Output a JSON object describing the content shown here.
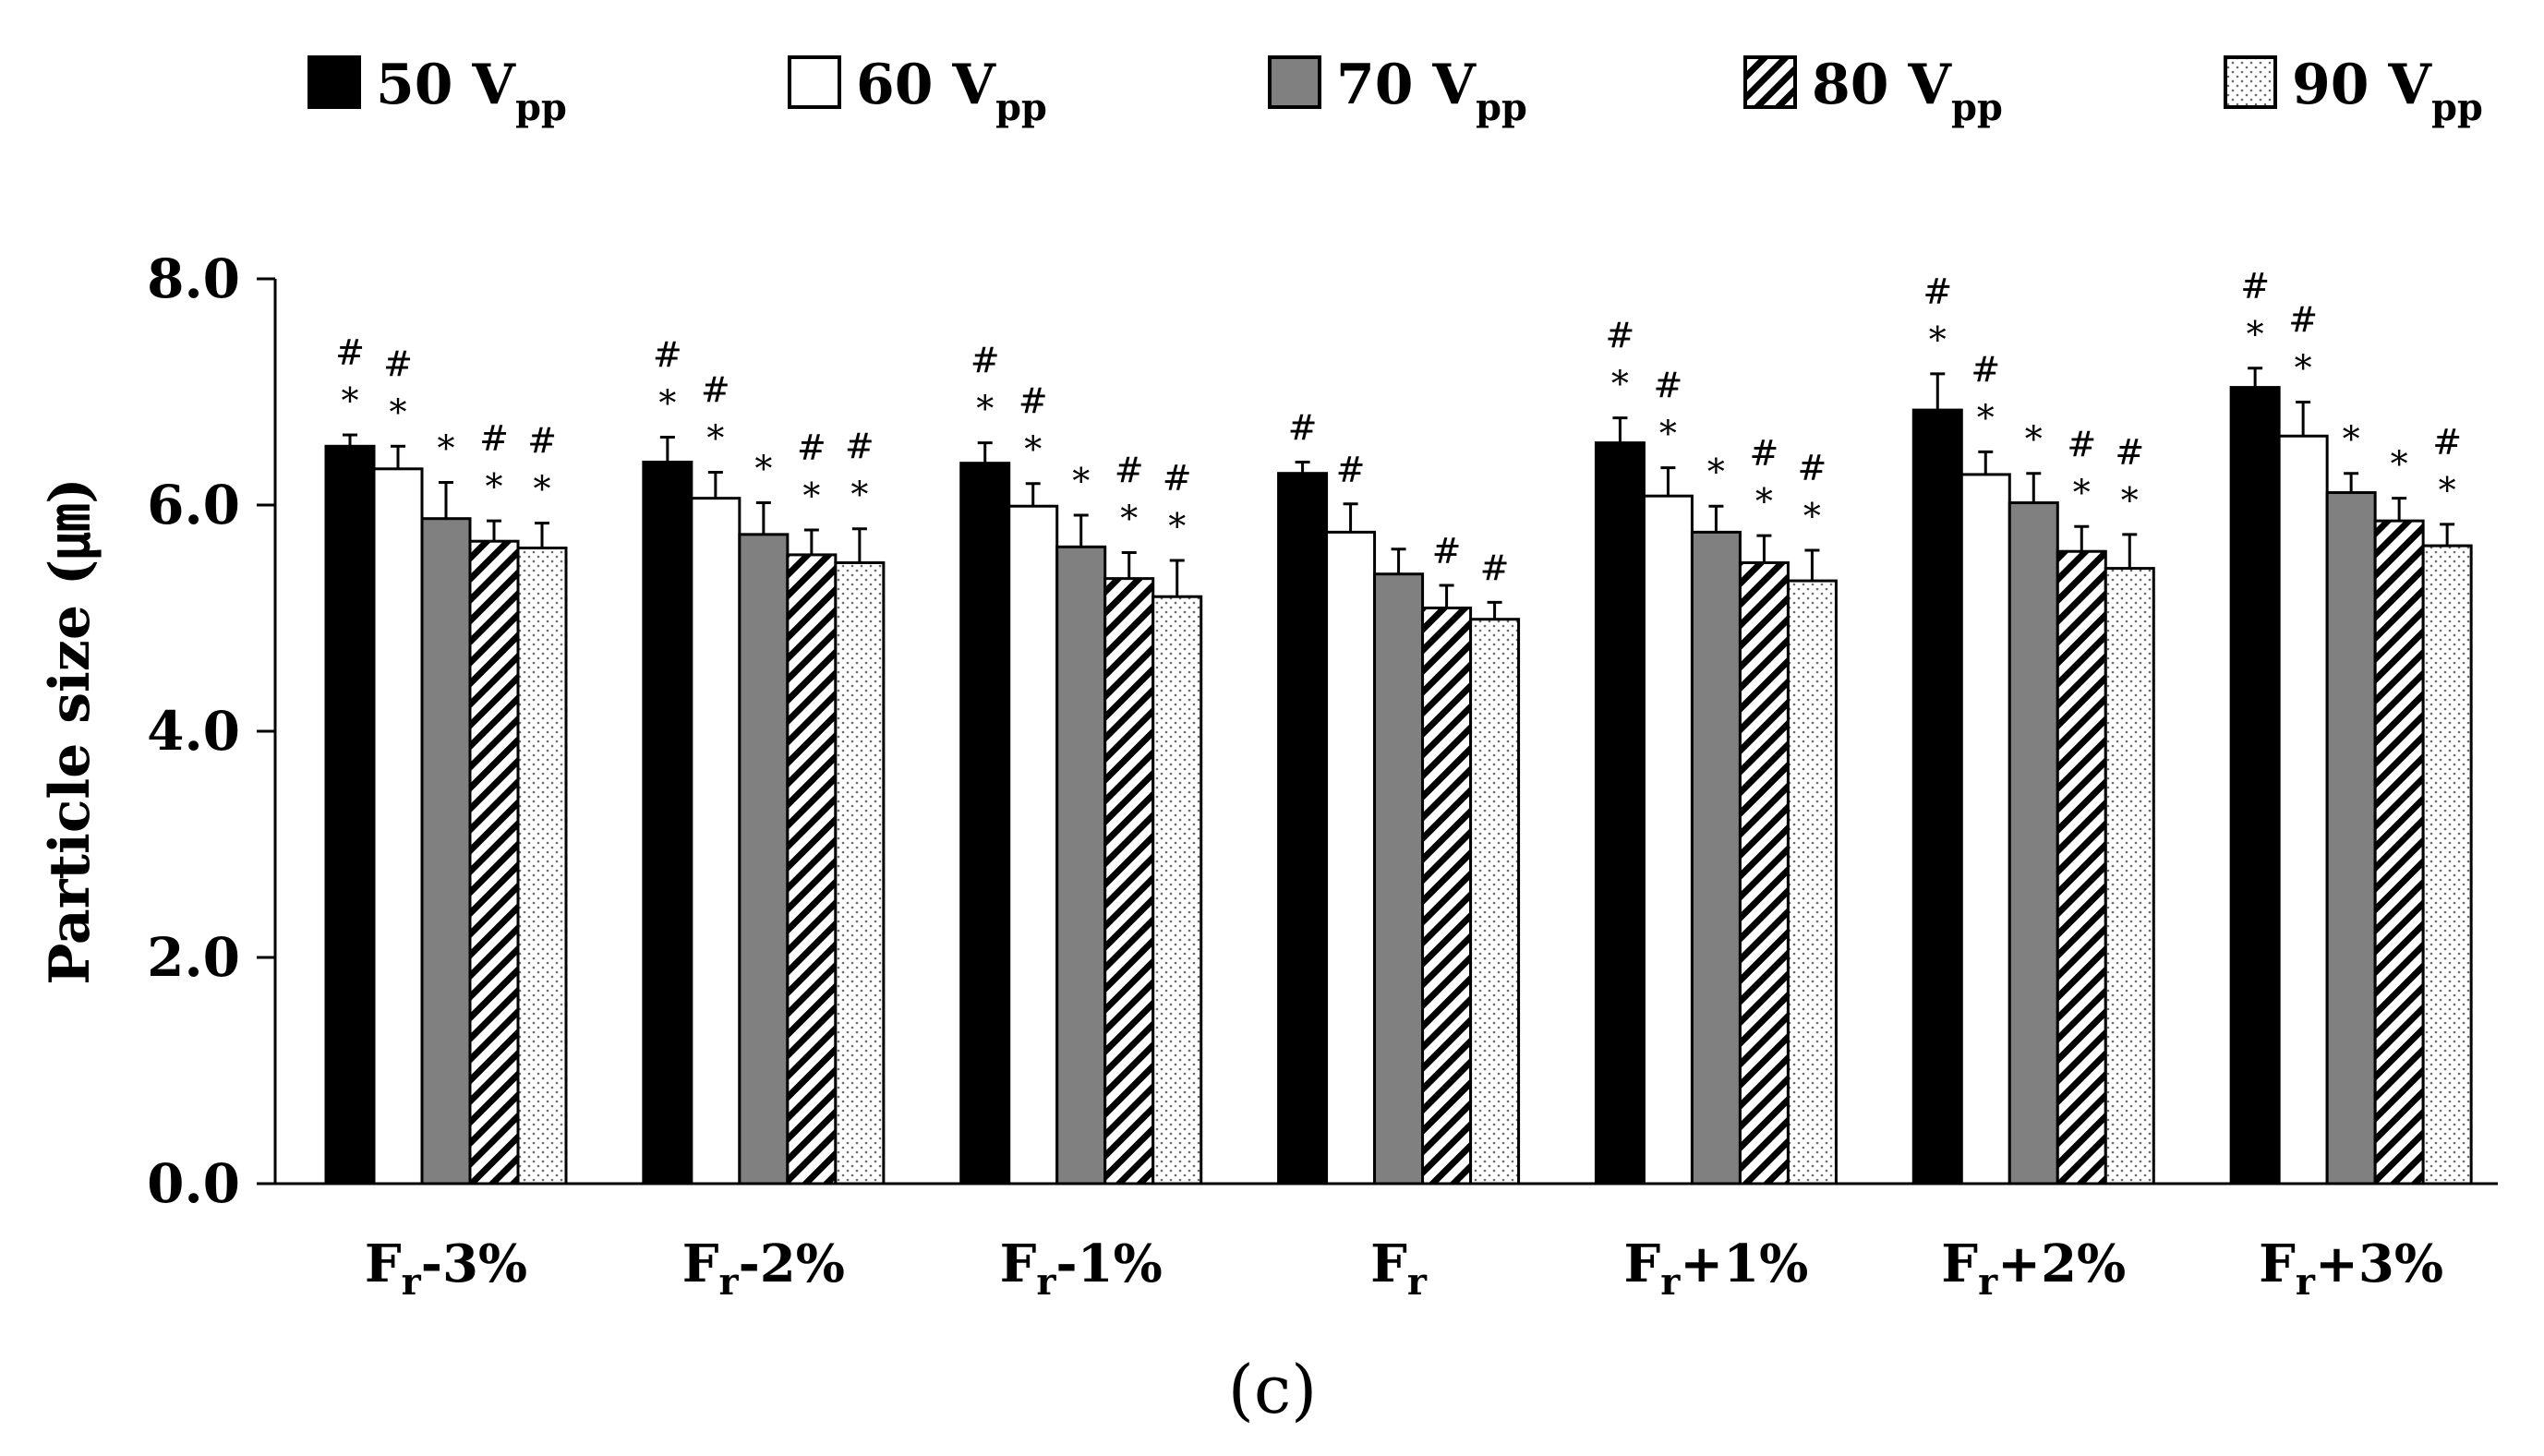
{
  "chart_data": {
    "type": "bar",
    "ylabel": "Particle size (㎛)",
    "ylim": [
      0,
      8.0
    ],
    "yticks": [
      "0.0",
      "2.0",
      "4.0",
      "6.0",
      "8.0"
    ],
    "caption": "(c)",
    "categories": [
      {
        "base": "F",
        "sub": "r",
        "suffix": "-3%"
      },
      {
        "base": "F",
        "sub": "r",
        "suffix": "-2%"
      },
      {
        "base": "F",
        "sub": "r",
        "suffix": "-1%"
      },
      {
        "base": "F",
        "sub": "r",
        "suffix": ""
      },
      {
        "base": "F",
        "sub": "r",
        "suffix": "+1%"
      },
      {
        "base": "F",
        "sub": "r",
        "suffix": "+2%"
      },
      {
        "base": "F",
        "sub": "r",
        "suffix": "+3%"
      }
    ],
    "series": [
      {
        "name": "50 V",
        "sub": "pp",
        "pattern": "black",
        "values": [
          6.52,
          6.38,
          6.37,
          6.28,
          6.55,
          6.84,
          7.04
        ],
        "errors": [
          0.1,
          0.22,
          0.18,
          0.1,
          0.22,
          0.32,
          0.17
        ],
        "marks": [
          [
            "#",
            "*"
          ],
          [
            "#",
            "*"
          ],
          [
            "#",
            "*"
          ],
          [
            "#"
          ],
          [
            "#",
            "*"
          ],
          [
            "#",
            "*"
          ],
          [
            "#",
            "*"
          ]
        ]
      },
      {
        "name": "60 V",
        "sub": "pp",
        "pattern": "white",
        "values": [
          6.32,
          6.06,
          5.99,
          5.76,
          6.08,
          6.27,
          6.61
        ],
        "errors": [
          0.2,
          0.23,
          0.2,
          0.25,
          0.25,
          0.2,
          0.3
        ],
        "marks": [
          [
            "#",
            "*"
          ],
          [
            "#",
            "*"
          ],
          [
            "#",
            "*"
          ],
          [
            "#"
          ],
          [
            "#",
            "*"
          ],
          [
            "#",
            "*"
          ],
          [
            "#",
            "*"
          ]
        ]
      },
      {
        "name": "70 V",
        "sub": "pp",
        "pattern": "gray",
        "values": [
          5.88,
          5.74,
          5.63,
          5.39,
          5.76,
          6.02,
          6.11
        ],
        "errors": [
          0.32,
          0.28,
          0.28,
          0.22,
          0.23,
          0.26,
          0.17
        ],
        "marks": [
          [
            "*"
          ],
          [
            "*"
          ],
          [
            "*"
          ],
          [],
          [
            "*"
          ],
          [
            "*"
          ],
          [
            "*"
          ]
        ]
      },
      {
        "name": "80 V",
        "sub": "pp",
        "pattern": "hatch",
        "values": [
          5.68,
          5.56,
          5.35,
          5.09,
          5.49,
          5.59,
          5.86
        ],
        "errors": [
          0.18,
          0.22,
          0.23,
          0.2,
          0.24,
          0.22,
          0.2
        ],
        "marks": [
          [
            "#",
            "*"
          ],
          [
            "#",
            "*"
          ],
          [
            "#",
            "*"
          ],
          [
            "#"
          ],
          [
            "#",
            "*"
          ],
          [
            "#",
            "*"
          ],
          [
            "*"
          ]
        ]
      },
      {
        "name": "90 V",
        "sub": "pp",
        "pattern": "dots",
        "values": [
          5.62,
          5.49,
          5.19,
          4.99,
          5.33,
          5.44,
          5.64
        ],
        "errors": [
          0.22,
          0.3,
          0.32,
          0.15,
          0.27,
          0.3,
          0.19
        ],
        "marks": [
          [
            "#",
            "*"
          ],
          [
            "#",
            "*"
          ],
          [
            "#",
            "*"
          ],
          [
            "#"
          ],
          [
            "#",
            "*"
          ],
          [
            "#",
            "*"
          ],
          [
            "#",
            "*"
          ]
        ]
      }
    ]
  },
  "colors": {
    "axis": "#000000",
    "black_bar": "#000000",
    "white_bar": "#ffffff",
    "gray_bar": "#808080",
    "dots_bg": "#ffffff",
    "dots_fg": "#6b6b6b"
  }
}
